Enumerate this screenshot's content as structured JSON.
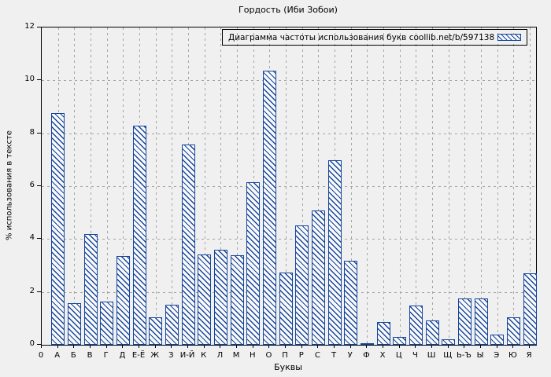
{
  "title": "Гордость (Иби Зобои)",
  "chart_data": {
    "type": "bar",
    "title": "Гордость (Иби Зобои)",
    "legend_label": "Диаграмма частоты использования букв coollib.net/b/597138",
    "xlabel": "Буквы",
    "ylabel": "% использования в тексте",
    "x_origin_label": "0",
    "ylim": [
      0,
      12
    ],
    "yticks": [
      0,
      2,
      4,
      6,
      8,
      10,
      12
    ],
    "grid": true,
    "legend_position": "top-right-inside",
    "categories": [
      "А",
      "Б",
      "В",
      "Г",
      "Д",
      "Е-Ё",
      "Ж",
      "З",
      "И-Й",
      "К",
      "Л",
      "М",
      "Н",
      "О",
      "П",
      "Р",
      "С",
      "Т",
      "У",
      "Ф",
      "Х",
      "Ц",
      "Ч",
      "Ш",
      "Щ",
      "Ь-Ъ",
      "Ы",
      "Э",
      "Ю",
      "Я"
    ],
    "values": [
      8.76,
      1.58,
      4.19,
      1.63,
      3.37,
      8.3,
      1.05,
      1.52,
      7.58,
      3.43,
      3.59,
      3.38,
      6.14,
      10.37,
      2.73,
      4.53,
      5.07,
      6.99,
      3.18,
      0.07,
      0.87,
      0.31,
      1.49,
      0.93,
      0.22,
      1.75,
      1.76,
      0.39,
      1.04,
      2.71
    ],
    "colors": {
      "bar_stroke": "#15459c",
      "bar_fill": "#f9f9f9",
      "background": "#f0f0f0",
      "grid": "#a4a4a4",
      "axis": "#000000"
    }
  }
}
